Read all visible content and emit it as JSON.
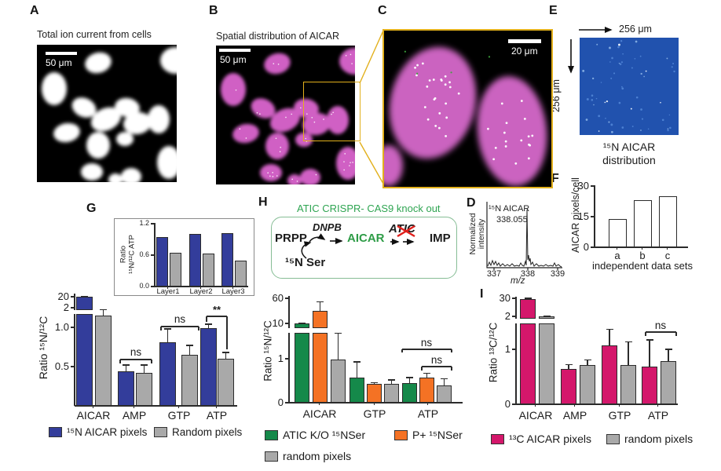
{
  "figure": {
    "panels": {
      "A": {
        "label": "A",
        "title": "Total ion current from cells",
        "scale_bar": "50 μm"
      },
      "B": {
        "label": "B",
        "title": "Spatial distribution of AICAR",
        "scale_bar": "50 μm"
      },
      "C": {
        "label": "C",
        "scale_bar": "20 μm"
      },
      "D": {
        "label": "D"
      },
      "E": {
        "label": "E",
        "width_arrow_label": "256 μm",
        "height_arrow_label": "256 μm",
        "caption_line1": "¹⁵N AICAR",
        "caption_line2": "distribution"
      },
      "F": {
        "label": "F"
      },
      "G": {
        "label": "G"
      },
      "H": {
        "label": "H"
      },
      "I": {
        "label": "I"
      }
    },
    "H_diagram": {
      "title": "ATIC CRISPR- CAS9 knock out",
      "node_prpp": "PRPP",
      "enzyme1": "DNPB",
      "node_aicar": "AICAR",
      "enzyme2": "ATIC",
      "node_imp": "IMP",
      "substrate": "¹⁵N Ser"
    },
    "legends": {
      "G": [
        {
          "label": "¹⁵N AICAR pixels",
          "color": "#333d9b"
        },
        {
          "label": "Random pixels",
          "color": "#a9a9a9"
        }
      ],
      "H": [
        {
          "label": "ATIC K/O ¹⁵NSer",
          "color": "#15894a"
        },
        {
          "label": "P+ ¹⁵NSer",
          "color": "#f47224"
        },
        {
          "label": "random pixels",
          "color": "#a9a9a9"
        }
      ],
      "I": [
        {
          "label": "¹³C AICAR pixels",
          "color": "#d4176b"
        },
        {
          "label": "random pixels",
          "color": "#a9a9a9"
        }
      ]
    },
    "colors": {
      "blue_bar": "#333d9b",
      "gray_bar": "#a9a9a9",
      "green_bar": "#15894a",
      "orange_bar": "#f47224",
      "magenta_bar": "#d4176b",
      "cell_magenta": "#cb63c0",
      "map_blue": "#2152ae",
      "highlight_yellow": "#e2b01c",
      "diagram_green": "#2fa552",
      "knockout_red": "#e01f1b"
    }
  },
  "chart_data": [
    {
      "id": "F",
      "type": "bar",
      "ylabel": "AICAR pixels/cell",
      "xlabel": "independent data sets",
      "categories": [
        "a",
        "b",
        "c"
      ],
      "values": [
        14,
        23,
        25
      ],
      "yticks": [
        "0",
        "15",
        "30"
      ],
      "ylim": [
        0,
        32
      ],
      "patterns": [
        "dense-crosshatch-gray",
        "checkerboard",
        "horizontal-lines"
      ]
    },
    {
      "id": "G_inset",
      "type": "bar",
      "ylabel_line1": "Ratio",
      "ylabel_line2": "¹⁵N/¹²C ATP",
      "categories": [
        "Layer1",
        "Layer2",
        "Layer3"
      ],
      "yticks": [
        "0.0",
        "0.6",
        "1.2"
      ],
      "ylim": [
        0,
        1.2
      ],
      "series": [
        {
          "name": "¹⁵N AICAR pixels",
          "color": "#333d9b",
          "values": [
            0.95,
            1.0,
            1.02
          ]
        },
        {
          "name": "Random pixels",
          "color": "#a9a9a9",
          "values": [
            0.65,
            0.63,
            0.5
          ]
        }
      ]
    },
    {
      "id": "G_main",
      "type": "bar",
      "ylabel": "Ratio ¹⁵N/¹²C",
      "axis_break": true,
      "categories": [
        "AICAR",
        "AMP",
        "GTP",
        "ATP"
      ],
      "lower_ticks": [
        "0.5",
        "1.0"
      ],
      "upper_ticks": [
        "2",
        "20"
      ],
      "series": [
        {
          "name": "¹⁵N AICAR pixels",
          "color": "#333d9b",
          "values": [
            19.5,
            0.44,
            0.81,
            0.99
          ],
          "errors": [
            1.2,
            0.08,
            0.17,
            0.05
          ]
        },
        {
          "name": "Random pixels",
          "color": "#a9a9a9",
          "values": [
            1.15,
            0.42,
            0.65,
            0.6
          ],
          "errors": [
            0.6,
            0.1,
            0.12,
            0.08
          ]
        }
      ],
      "significance": [
        {
          "over": "AMP",
          "text": "ns"
        },
        {
          "over": "GTP",
          "text": "ns"
        },
        {
          "over": "ATP",
          "text": "**"
        }
      ]
    },
    {
      "id": "H",
      "type": "bar",
      "ylabel": "Ratio ¹⁵N/¹²C",
      "axis_break": true,
      "categories": [
        "AICAR",
        "GTP",
        "ATP"
      ],
      "lower_ticks": [
        "0",
        "1"
      ],
      "upper_ticks": [
        "10",
        "60"
      ],
      "series": [
        {
          "name": "ATIC K/O ¹⁵NSer",
          "color": "#15894a",
          "values": [
            10,
            0.58,
            0.45
          ],
          "errors": [
            1.0,
            0.35,
            0.12
          ]
        },
        {
          "name": "P+ ¹⁵NSer",
          "color": "#f47224",
          "values": [
            35,
            0.42,
            0.57
          ],
          "errors": [
            18,
            0.03,
            0.1
          ]
        },
        {
          "name": "random pixels",
          "color": "#a9a9a9",
          "values": [
            0.98,
            0.42,
            0.4
          ],
          "errors": [
            0.6,
            0.1,
            0.15
          ]
        }
      ],
      "significance": [
        {
          "over": "ATP",
          "between": [
            "ATIC K/O ¹⁵NSer",
            "random pixels"
          ],
          "text": "ns"
        },
        {
          "over": "ATP",
          "between": [
            "P+ ¹⁵NSer",
            "random pixels"
          ],
          "text": "ns"
        }
      ]
    },
    {
      "id": "I",
      "type": "bar",
      "ylabel": "Ratio ¹³C/¹²C",
      "axis_break": true,
      "categories": [
        "AICAR",
        "AMP",
        "GTP",
        "ATP"
      ],
      "lower_ticks": [
        "0",
        "1"
      ],
      "upper_ticks": [
        "2",
        "30"
      ],
      "series": [
        {
          "name": "¹³C AICAR pixels",
          "color": "#d4176b",
          "values": [
            28.5,
            0.64,
            1.07,
            0.69
          ],
          "errors": [
            1.5,
            0.08,
            0.29,
            0.48
          ]
        },
        {
          "name": "random pixels",
          "color": "#a9a9a9",
          "values": [
            2.0,
            0.71,
            0.71,
            0.79
          ],
          "errors": [
            0.2,
            0.1,
            0.43,
            0.21
          ]
        }
      ],
      "significance": [
        {
          "over": "ATP",
          "text": "ns"
        }
      ]
    },
    {
      "id": "D",
      "type": "line",
      "ylabel_line1": "Normalized",
      "ylabel_line2": "intensity",
      "xlabel": "m/z",
      "xticks": [
        "337",
        "338",
        "339"
      ],
      "x_range": [
        337,
        339
      ],
      "annotation_line1": "¹⁵N AICAR",
      "annotation_line2": "338.055",
      "peak": {
        "mz": 338.055,
        "relative_intensity": 1.0
      }
    }
  ]
}
